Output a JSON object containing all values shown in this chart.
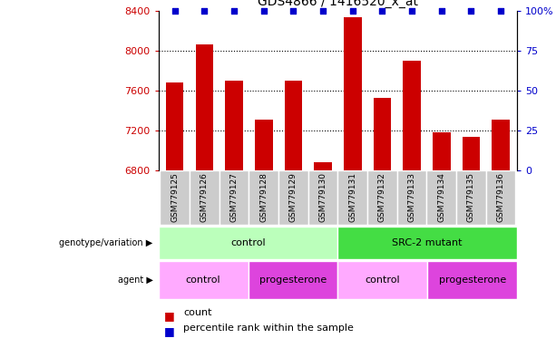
{
  "title": "GDS4866 / 1416520_x_at",
  "samples": [
    "GSM779125",
    "GSM779126",
    "GSM779127",
    "GSM779128",
    "GSM779129",
    "GSM779130",
    "GSM779131",
    "GSM779132",
    "GSM779133",
    "GSM779134",
    "GSM779135",
    "GSM779136"
  ],
  "counts": [
    7680,
    8060,
    7700,
    7310,
    7700,
    6880,
    8330,
    7530,
    7900,
    7180,
    7140,
    7310
  ],
  "ylim_left": [
    6800,
    8400
  ],
  "ylim_right": [
    0,
    100
  ],
  "yticks_left": [
    6800,
    7200,
    7600,
    8000,
    8400
  ],
  "yticks_right": [
    0,
    25,
    50,
    75,
    100
  ],
  "ytick_labels_right": [
    "0",
    "25",
    "50",
    "75",
    "100%"
  ],
  "bar_color": "#cc0000",
  "dot_color": "#0000cc",
  "genotype_groups": [
    {
      "label": "control",
      "start": 0,
      "end": 6,
      "color": "#bbffbb"
    },
    {
      "label": "SRC-2 mutant",
      "start": 6,
      "end": 12,
      "color": "#44dd44"
    }
  ],
  "agent_groups": [
    {
      "label": "control",
      "start": 0,
      "end": 3,
      "color": "#ffaaff"
    },
    {
      "label": "progesterone",
      "start": 3,
      "end": 6,
      "color": "#dd44dd"
    },
    {
      "label": "control",
      "start": 6,
      "end": 9,
      "color": "#ffaaff"
    },
    {
      "label": "progesterone",
      "start": 9,
      "end": 12,
      "color": "#dd44dd"
    }
  ],
  "tick_label_color_left": "#cc0000",
  "tick_label_color_right": "#0000cc",
  "xticklabel_bg": "#cccccc",
  "legend_count_color": "#cc0000",
  "legend_dot_color": "#0000cc"
}
